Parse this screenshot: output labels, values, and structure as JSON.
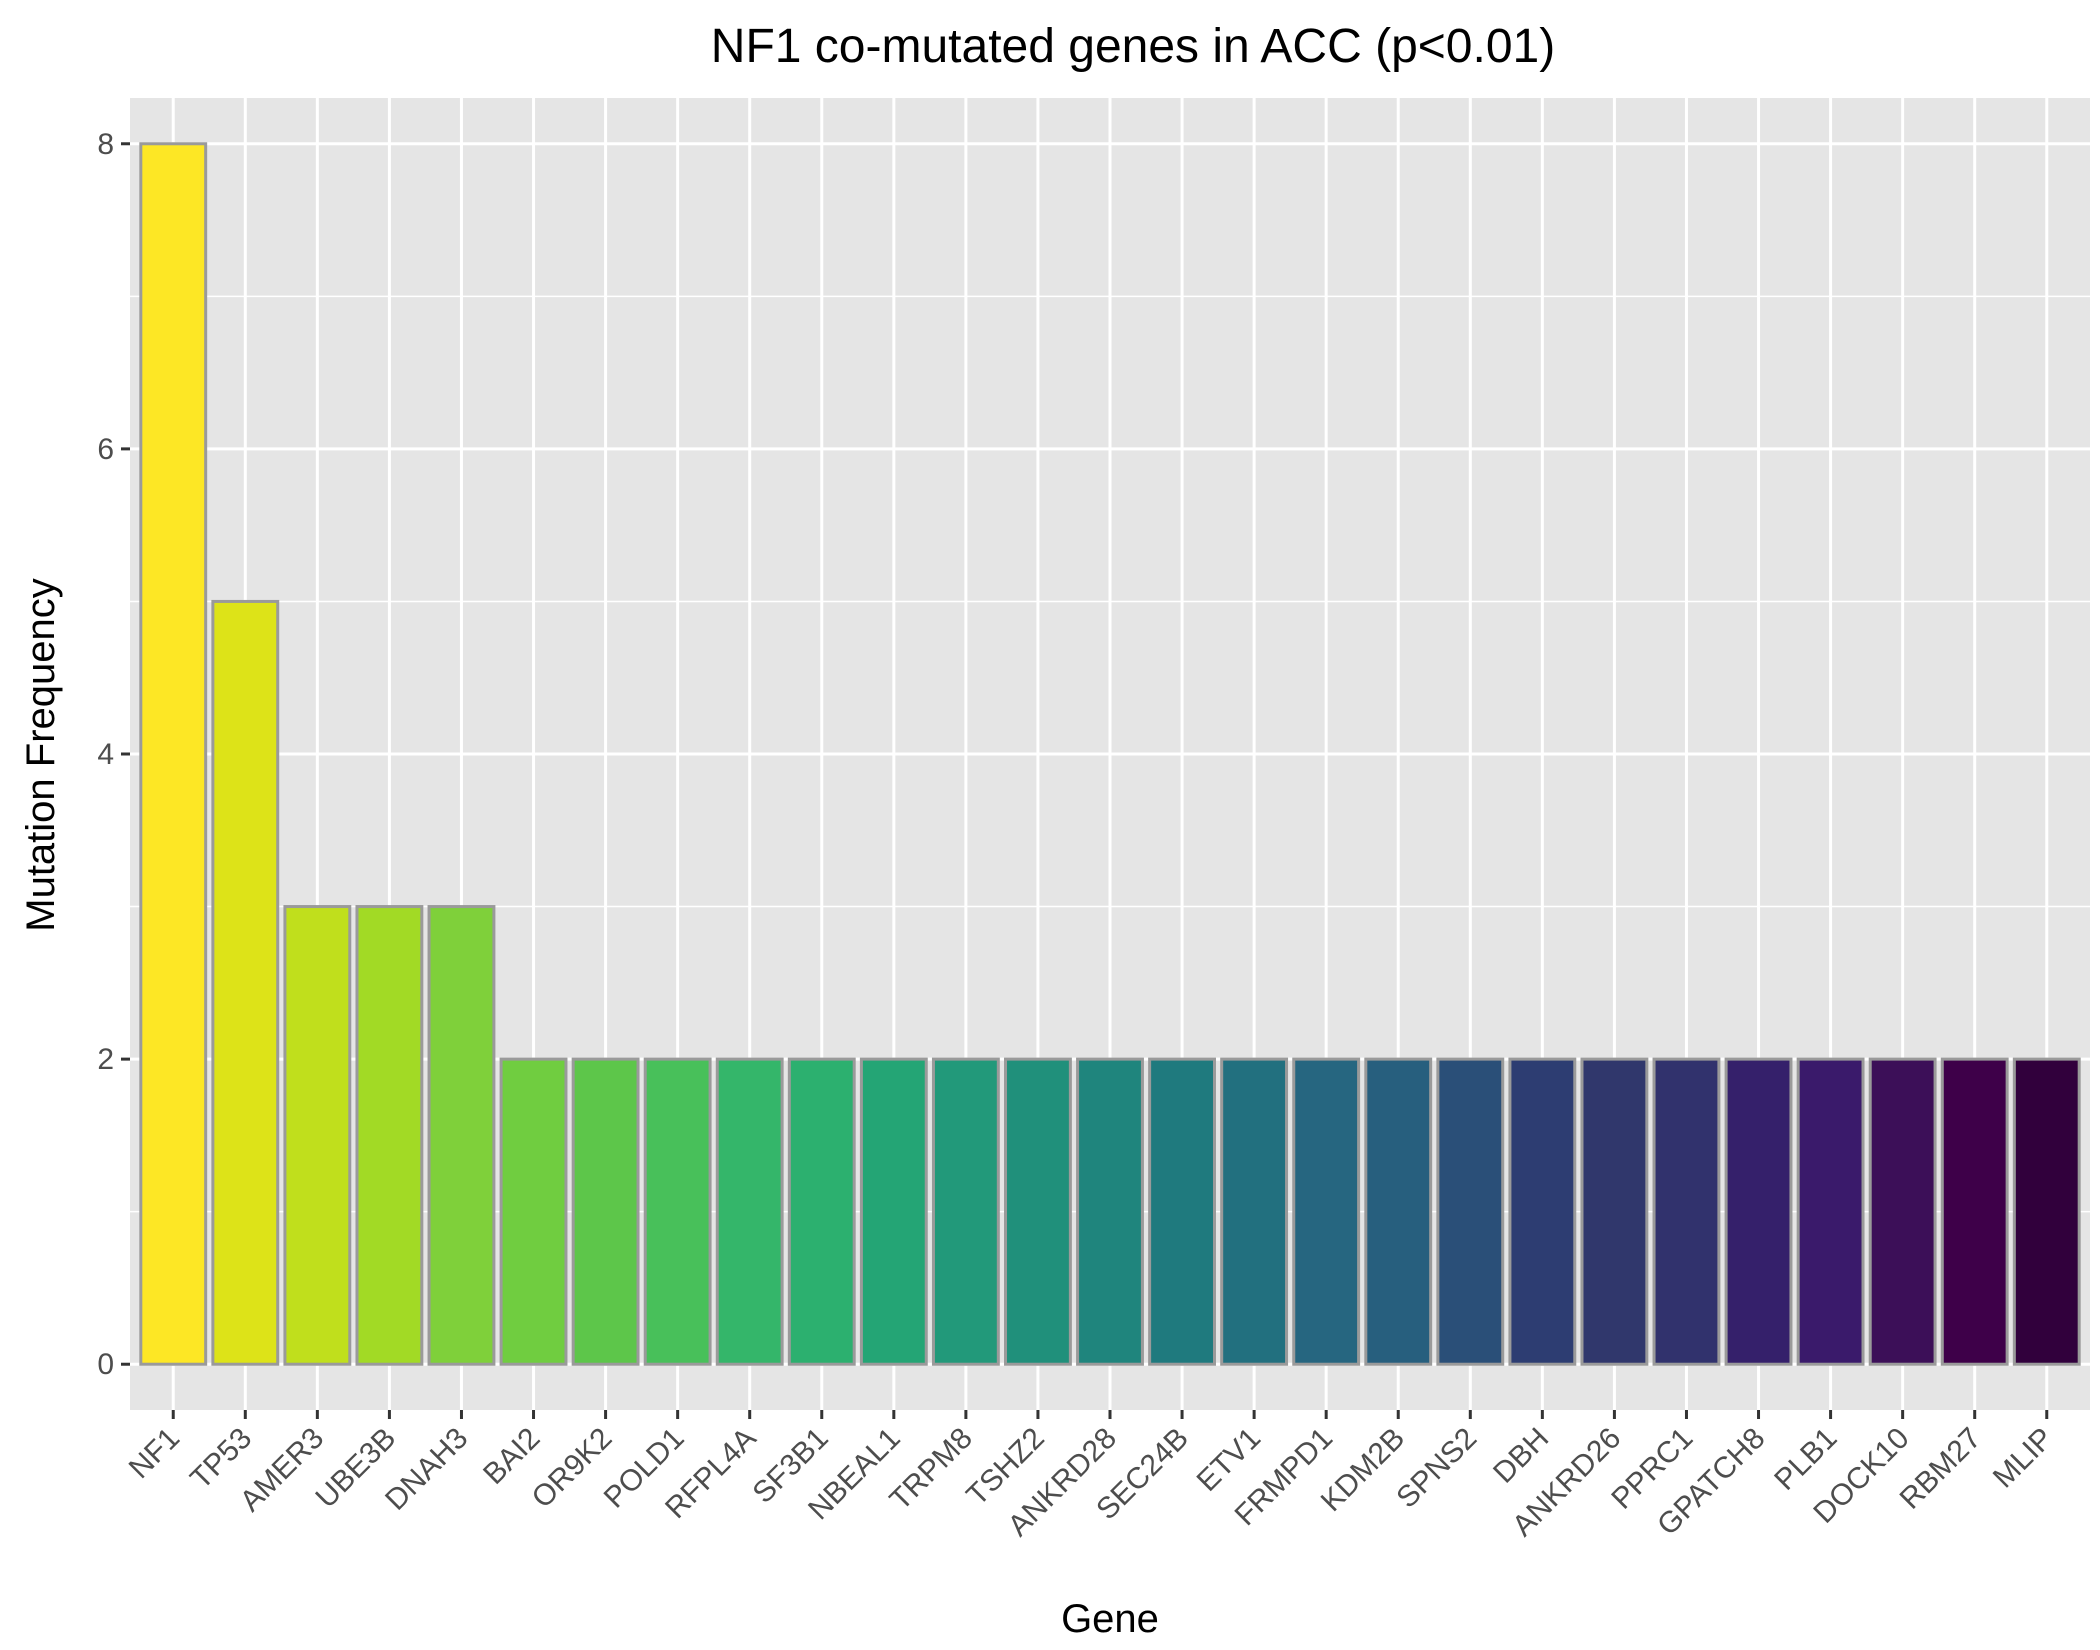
{
  "chart_data": {
    "type": "bar",
    "title": "NF1 co-mutated genes in ACC (p<0.01)",
    "xlabel": "Gene",
    "ylabel": "Mutation Frequency",
    "ylim": [
      -0.3,
      8.3
    ],
    "yticks": [
      0,
      2,
      4,
      6,
      8
    ],
    "grid": true,
    "categories": [
      "NF1",
      "TP53",
      "AMER3",
      "UBE3B",
      "DNAH3",
      "BAI2",
      "OR9K2",
      "POLD1",
      "RFPL4A",
      "SF3B1",
      "NBEAL1",
      "TRPM8",
      "TSHZ2",
      "ANKRD28",
      "SEC24B",
      "ETV1",
      "FRMPD1",
      "KDM2B",
      "SPNS2",
      "DBH",
      "ANKRD26",
      "PPRC1",
      "GPATCH8",
      "PLB1",
      "DOCK10",
      "RBM27",
      "MLIP"
    ],
    "values": [
      8,
      5,
      3,
      3,
      3,
      2,
      2,
      2,
      2,
      2,
      2,
      2,
      2,
      2,
      2,
      2,
      2,
      2,
      2,
      2,
      2,
      2,
      2,
      2,
      2,
      2,
      2
    ],
    "colors": [
      "#fde725",
      "#dde318",
      "#c0df1c",
      "#a2da25",
      "#7fd03a",
      "#70cd40",
      "#5dc64a",
      "#48c05a",
      "#34b66a",
      "#2cb06f",
      "#24a575",
      "#22997a",
      "#20907b",
      "#1f857d",
      "#1f7a7e",
      "#22707f",
      "#266680",
      "#275f7e",
      "#2a4f78",
      "#2d3d72",
      "#30376c",
      "#31326d",
      "#35206b",
      "#3a1a6b",
      "#3c0f58",
      "#3e0049",
      "#31003c"
    ],
    "bar_stroke": "#9a9a9a",
    "panel_background": "#e5e5e5"
  }
}
